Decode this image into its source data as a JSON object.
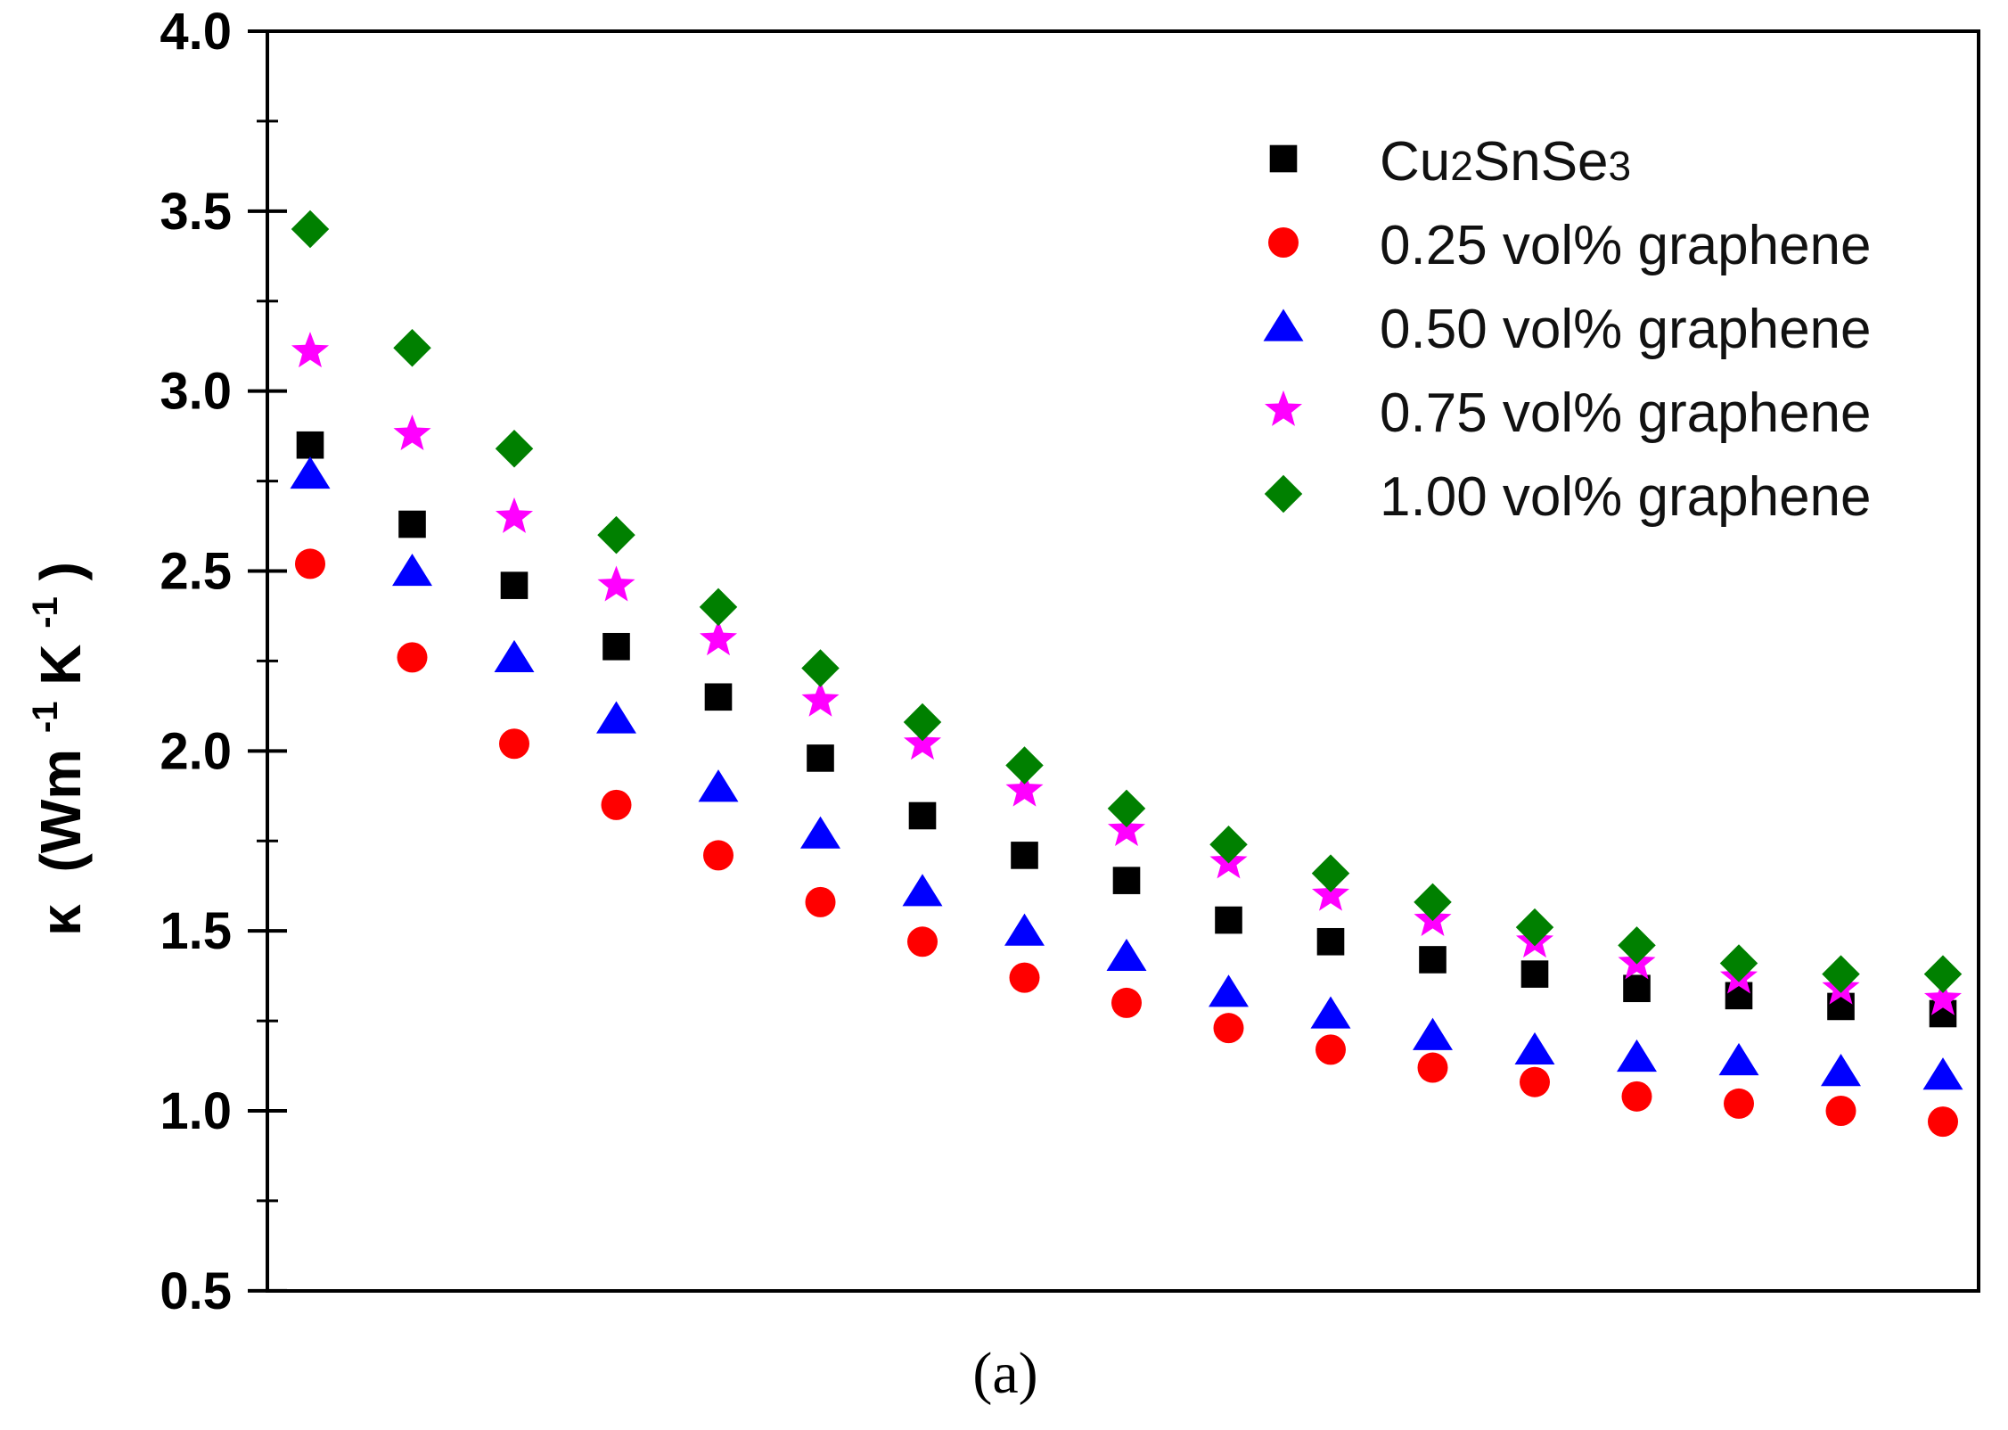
{
  "chart_data": {
    "type": "scatter",
    "title": "",
    "xlabel": "",
    "ylabel_symbol": "κ",
    "ylabel_unit_parts": [
      "(Wm",
      "-1",
      "K",
      "-1",
      ")"
    ],
    "ylabel": "κ (Wm-1K-1)",
    "ylim": [
      0.5,
      4.0
    ],
    "y_ticks": [
      "0.5",
      "1.0",
      "1.5",
      "2.0",
      "2.5",
      "3.0",
      "3.5",
      "4.0"
    ],
    "y_tick_values": [
      0.5,
      1.0,
      1.5,
      2.0,
      2.5,
      3.0,
      3.5,
      4.0
    ],
    "x_points": 17,
    "legend_position": "top-right",
    "caption": "(a)",
    "series": [
      {
        "name": "Cu2SnSe3",
        "name_parts": [
          "Cu",
          "2",
          "SnSe",
          "3"
        ],
        "marker": "square",
        "color": "#000000",
        "values": [
          2.85,
          2.63,
          2.46,
          2.29,
          2.15,
          1.98,
          1.82,
          1.71,
          1.64,
          1.53,
          1.47,
          1.42,
          1.38,
          1.34,
          1.32,
          1.29,
          1.27
        ]
      },
      {
        "name": "0.25 vol% graphene",
        "marker": "circle",
        "color": "#ff0000",
        "values": [
          2.52,
          2.26,
          2.02,
          1.85,
          1.71,
          1.58,
          1.47,
          1.37,
          1.3,
          1.23,
          1.17,
          1.12,
          1.08,
          1.04,
          1.02,
          1.0,
          0.97
        ]
      },
      {
        "name": "0.50 vol% graphene",
        "marker": "triangle",
        "color": "#0000ff",
        "values": [
          2.77,
          2.5,
          2.26,
          2.09,
          1.9,
          1.77,
          1.61,
          1.5,
          1.43,
          1.33,
          1.27,
          1.21,
          1.17,
          1.15,
          1.14,
          1.11,
          1.1
        ]
      },
      {
        "name": "0.75 vol% graphene",
        "marker": "star",
        "color": "#ff00ff",
        "values": [
          3.11,
          2.88,
          2.65,
          2.46,
          2.31,
          2.14,
          2.02,
          1.89,
          1.78,
          1.69,
          1.6,
          1.53,
          1.47,
          1.41,
          1.37,
          1.34,
          1.31
        ]
      },
      {
        "name": "1.00 vol% graphene",
        "marker": "diamond",
        "color": "#008000",
        "values": [
          3.45,
          3.12,
          2.84,
          2.6,
          2.4,
          2.23,
          2.08,
          1.96,
          1.84,
          1.74,
          1.66,
          1.58,
          1.51,
          1.46,
          1.41,
          1.38,
          1.38
        ]
      }
    ]
  }
}
